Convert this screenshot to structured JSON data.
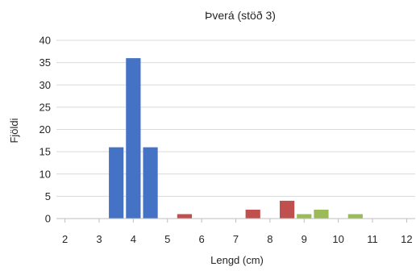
{
  "chart_data": {
    "type": "bar",
    "title": "Þverá (stöð 3)",
    "xlabel": "Lengd (cm)",
    "ylabel": "Fjöldi",
    "xlim": [
      1.75,
      12.25
    ],
    "ylim": [
      0,
      40
    ],
    "x_ticks": [
      "2",
      "3",
      "4",
      "5",
      "6",
      "7",
      "8",
      "9",
      "10",
      "11",
      "12"
    ],
    "y_ticks": [
      "0",
      "5",
      "10",
      "15",
      "20",
      "25",
      "30",
      "35",
      "40"
    ],
    "bin_width": 0.5,
    "grid": "horizontal",
    "legend": "none",
    "series": [
      {
        "color": "#4472C4",
        "points": [
          {
            "x": 3.5,
            "y": 16
          },
          {
            "x": 4.0,
            "y": 36
          },
          {
            "x": 4.5,
            "y": 16
          }
        ]
      },
      {
        "color": "#C0504D",
        "points": [
          {
            "x": 5.5,
            "y": 1
          },
          {
            "x": 7.5,
            "y": 2
          },
          {
            "x": 8.5,
            "y": 4
          }
        ]
      },
      {
        "color": "#9BBB59",
        "points": [
          {
            "x": 9.0,
            "y": 1
          },
          {
            "x": 9.5,
            "y": 2
          },
          {
            "x": 10.5,
            "y": 1
          }
        ]
      }
    ]
  }
}
